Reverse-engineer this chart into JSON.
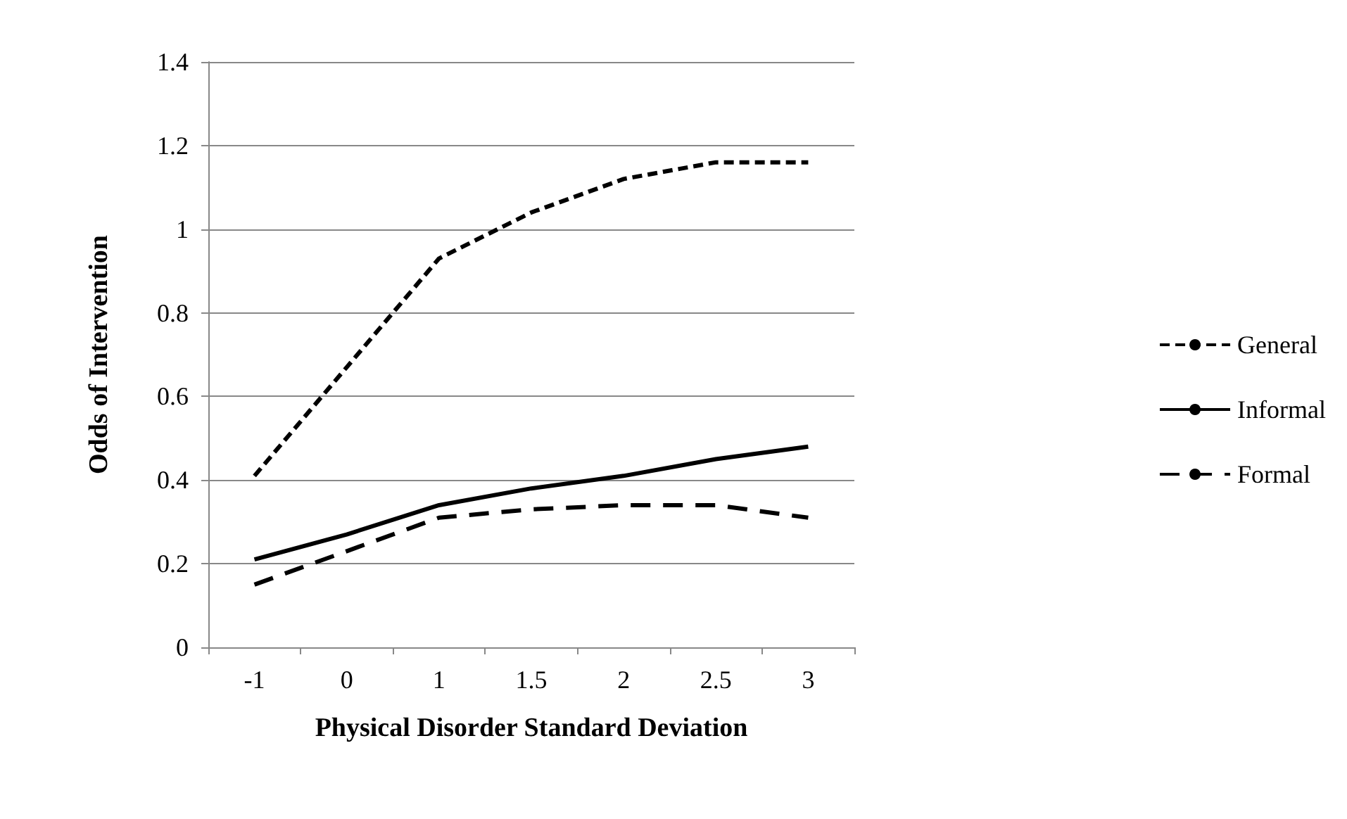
{
  "chart_data": {
    "type": "line",
    "xlabel": "Physical Disorder Standard Deviation",
    "ylabel": "Odds of Intervention",
    "categories": [
      "-1",
      "0",
      "1",
      "1.5",
      "2",
      "2.5",
      "3"
    ],
    "series": [
      {
        "name": "General",
        "color": "#000000",
        "line_style": "dotted",
        "values": [
          0.41,
          0.67,
          0.93,
          1.04,
          1.12,
          1.16,
          1.16
        ]
      },
      {
        "name": "Informal",
        "color": "#000000",
        "line_style": "solid",
        "values": [
          0.21,
          0.27,
          0.34,
          0.38,
          0.41,
          0.45,
          0.48
        ]
      },
      {
        "name": "Formal",
        "color": "#000000",
        "line_style": "dashed",
        "values": [
          0.15,
          0.23,
          0.31,
          0.33,
          0.34,
          0.34,
          0.31
        ]
      }
    ],
    "ylim": [
      0,
      1.4
    ],
    "yticks": [
      0,
      0.2,
      0.4,
      0.6,
      0.8,
      1,
      1.2,
      1.4
    ],
    "grid": "y",
    "legend": "right",
    "marker": "none"
  }
}
